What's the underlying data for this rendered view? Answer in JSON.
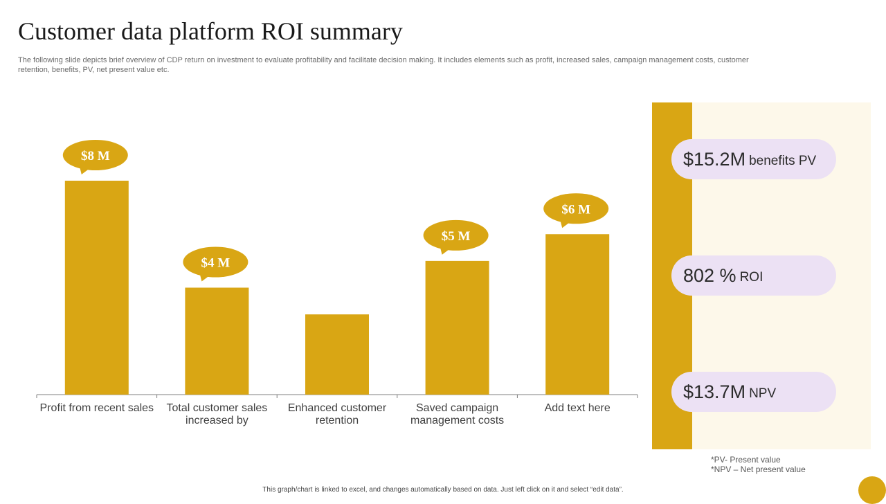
{
  "slide": {
    "title": "Customer data platform ROI summary",
    "subtitle": "The following slide depicts brief overview of CDP return on investment to evaluate profitability and facilitate decision making. It includes elements such as profit, increased sales, campaign management costs, customer retention, benefits, PV, net present value etc.",
    "footer": "This graph/chart is linked to excel, and changes automatically based on data. Just left click on it and select “edit data”."
  },
  "chart_data": {
    "type": "bar",
    "categories": [
      "Profit from recent sales",
      "Total customer sales increased by",
      "Enhanced customer retention",
      "Saved campaign management costs",
      "Add text here"
    ],
    "category_lines": [
      [
        "Profit from recent sales"
      ],
      [
        "Total customer sales",
        "increased by"
      ],
      [
        "Enhanced customer",
        "retention"
      ],
      [
        "Saved campaign",
        "management costs"
      ],
      [
        "Add text here"
      ]
    ],
    "values": [
      8,
      4,
      3,
      5,
      6
    ],
    "data_labels": [
      "$8 M",
      "$4 M",
      "",
      "$5 M",
      "$6 M"
    ],
    "ylim": [
      0,
      8
    ],
    "grid": false,
    "bar_color": "#d9a614"
  },
  "side_panel": {
    "metrics": [
      {
        "value": "$15.2M",
        "label": "benefits PV"
      },
      {
        "value": "802 %",
        "label": "ROI"
      },
      {
        "value": "$13.7M",
        "label": "NPV"
      }
    ],
    "notes": [
      "*PV- Present value",
      "*NPV – Net present value"
    ]
  },
  "colors": {
    "accent": "#d9a614",
    "panel_bg": "#fdf8ea",
    "pill_bg": "#ece1f4"
  }
}
